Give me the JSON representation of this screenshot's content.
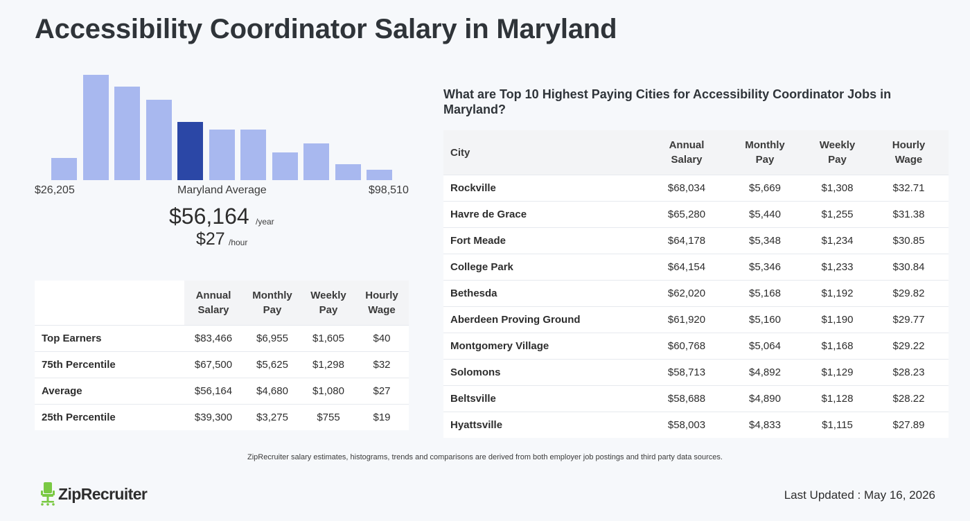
{
  "page": {
    "title": "Accessibility Coordinator Salary in Maryland"
  },
  "histogram": {
    "min_label": "$26,205",
    "max_label": "$98,510",
    "mid_label": "Maryland Average",
    "bars": [
      0.21,
      1.0,
      0.89,
      0.76,
      0.55,
      0.48,
      0.48,
      0.26,
      0.35,
      0.15,
      0.1
    ],
    "highlight_index": 4,
    "colors": {
      "bar": "#a8b8ef",
      "highlight": "#2b47a6"
    }
  },
  "average": {
    "annual": "$56,164",
    "annual_unit": "/year",
    "hourly": "$27",
    "hourly_unit": "/hour"
  },
  "percentile_table": {
    "headers": [
      [
        "Annual",
        "Salary"
      ],
      [
        "Monthly",
        "Pay"
      ],
      [
        "Weekly",
        "Pay"
      ],
      [
        "Hourly",
        "Wage"
      ]
    ],
    "rows": [
      {
        "label": "Top Earners",
        "cells": [
          "$83,466",
          "$6,955",
          "$1,605",
          "$40"
        ]
      },
      {
        "label": "75th Percentile",
        "cells": [
          "$67,500",
          "$5,625",
          "$1,298",
          "$32"
        ]
      },
      {
        "label": "Average",
        "cells": [
          "$56,164",
          "$4,680",
          "$1,080",
          "$27"
        ]
      },
      {
        "label": "25th Percentile",
        "cells": [
          "$39,300",
          "$3,275",
          "$755",
          "$19"
        ]
      }
    ]
  },
  "cities": {
    "heading": "What are Top 10 Highest Paying Cities for Accessibility Coordinator Jobs in Maryland?",
    "city_header": "City",
    "headers": [
      [
        "Annual",
        "Salary"
      ],
      [
        "Monthly",
        "Pay"
      ],
      [
        "Weekly",
        "Pay"
      ],
      [
        "Hourly",
        "Wage"
      ]
    ],
    "rows": [
      {
        "city": "Rockville",
        "cells": [
          "$68,034",
          "$5,669",
          "$1,308",
          "$32.71"
        ]
      },
      {
        "city": "Havre de Grace",
        "cells": [
          "$65,280",
          "$5,440",
          "$1,255",
          "$31.38"
        ]
      },
      {
        "city": "Fort Meade",
        "cells": [
          "$64,178",
          "$5,348",
          "$1,234",
          "$30.85"
        ]
      },
      {
        "city": "College Park",
        "cells": [
          "$64,154",
          "$5,346",
          "$1,233",
          "$30.84"
        ]
      },
      {
        "city": "Bethesda",
        "cells": [
          "$62,020",
          "$5,168",
          "$1,192",
          "$29.82"
        ]
      },
      {
        "city": "Aberdeen Proving Ground",
        "cells": [
          "$61,920",
          "$5,160",
          "$1,190",
          "$29.77"
        ]
      },
      {
        "city": "Montgomery Village",
        "cells": [
          "$60,768",
          "$5,064",
          "$1,168",
          "$29.22"
        ]
      },
      {
        "city": "Solomons",
        "cells": [
          "$58,713",
          "$4,892",
          "$1,129",
          "$28.23"
        ]
      },
      {
        "city": "Beltsville",
        "cells": [
          "$58,688",
          "$4,890",
          "$1,128",
          "$28.22"
        ]
      },
      {
        "city": "Hyattsville",
        "cells": [
          "$58,003",
          "$4,833",
          "$1,115",
          "$27.89"
        ]
      }
    ]
  },
  "footer": {
    "disclaimer": "ZipRecruiter salary estimates, histograms, trends and comparisons are derived from both employer job postings and third party data sources.",
    "logo_text": "ZipRecruiter",
    "last_updated": "Last Updated : May 16, 2026",
    "logo_color": "#7ac943"
  }
}
